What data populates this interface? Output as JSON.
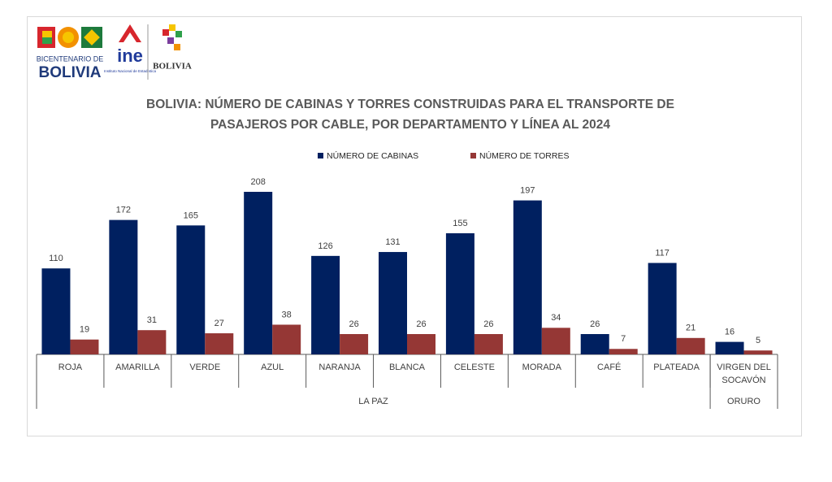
{
  "logos": [
    "BICENTENARIO DE",
    "BOLIVIA",
    "ine",
    "Instituto Nacional de Estadística",
    "BOLIVIA"
  ],
  "chart_data": {
    "type": "bar",
    "title": "BOLIVIA: NÚMERO DE CABINAS Y TORRES CONSTRUIDAS PARA EL TRANSPORTE DE PASAJEROS POR CABLE, POR DEPARTAMENTO Y LÍNEA AL 2024",
    "categories": [
      "ROJA",
      "AMARILLA",
      "VERDE",
      "AZUL",
      "NARANJA",
      "BLANCA",
      "CELESTE",
      "MORADA",
      "CAFÉ",
      "PLATEADA",
      "VIRGEN DEL SOCAVÓN"
    ],
    "groups": [
      {
        "name": "LA PAZ",
        "count": 10
      },
      {
        "name": "ORURO",
        "count": 1
      }
    ],
    "series": [
      {
        "name": "NÚMERO DE CABINAS",
        "color": "#002060",
        "values": [
          110,
          172,
          165,
          208,
          126,
          131,
          155,
          197,
          26,
          117,
          16
        ]
      },
      {
        "name": "NÚMERO DE TORRES",
        "color": "#953735",
        "values": [
          19,
          31,
          27,
          38,
          26,
          26,
          26,
          34,
          7,
          21,
          5
        ]
      }
    ],
    "ylim": [
      0,
      208
    ],
    "legend": "top"
  }
}
